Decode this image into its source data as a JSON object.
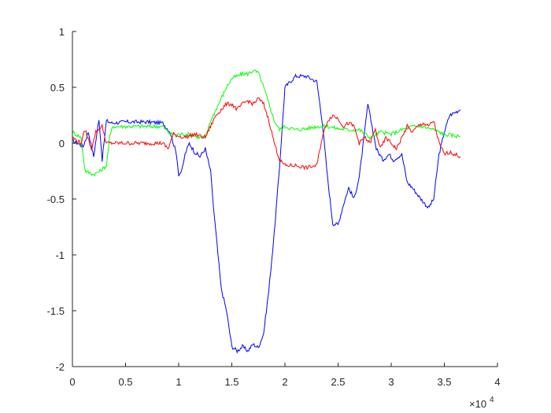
{
  "chart_data": {
    "type": "line",
    "title": "",
    "xlabel": "",
    "ylabel": "",
    "xlim": [
      0,
      40000
    ],
    "ylim": [
      -2,
      1
    ],
    "x_ticks": [
      0,
      5000,
      10000,
      15000,
      20000,
      25000,
      30000,
      35000,
      40000
    ],
    "x_tick_labels": [
      "0",
      "0.5",
      "1",
      "1.5",
      "2",
      "2.5",
      "3",
      "3.5",
      "4"
    ],
    "x_exponent_label": "×10",
    "x_exponent_power": "4",
    "y_ticks": [
      1,
      0.5,
      0,
      -0.5,
      -1,
      -1.5,
      -2
    ],
    "y_tick_labels": [
      "1",
      "0.5",
      "0",
      "-0.5",
      "-1",
      "-1.5",
      "-2"
    ],
    "grid": false,
    "legend": "none",
    "series": [
      {
        "color": "#0000ff",
        "points": [
          [
            0,
            0.02
          ],
          [
            500,
            0.0
          ],
          [
            1000,
            -0.03
          ],
          [
            1500,
            0.1
          ],
          [
            2000,
            -0.12
          ],
          [
            2500,
            0.22
          ],
          [
            2800,
            -0.15
          ],
          [
            3200,
            0.2
          ],
          [
            3700,
            0.18
          ],
          [
            5000,
            0.19
          ],
          [
            7000,
            0.19
          ],
          [
            8500,
            0.18
          ],
          [
            9200,
            0.1
          ],
          [
            9800,
            -0.1
          ],
          [
            10000,
            -0.28
          ],
          [
            10300,
            -0.25
          ],
          [
            10600,
            -0.1
          ],
          [
            11000,
            0.0
          ],
          [
            11500,
            -0.08
          ],
          [
            12000,
            -0.12
          ],
          [
            12500,
            -0.05
          ],
          [
            13000,
            -0.25
          ],
          [
            13300,
            -0.6
          ],
          [
            13700,
            -1.0
          ],
          [
            14000,
            -1.3
          ],
          [
            14500,
            -1.5
          ],
          [
            15000,
            -1.82
          ],
          [
            15500,
            -1.86
          ],
          [
            16000,
            -1.82
          ],
          [
            16500,
            -1.86
          ],
          [
            17000,
            -1.8
          ],
          [
            17500,
            -1.83
          ],
          [
            18000,
            -1.7
          ],
          [
            18500,
            -1.3
          ],
          [
            19000,
            -0.8
          ],
          [
            19500,
            -0.2
          ],
          [
            20000,
            0.5
          ],
          [
            20500,
            0.55
          ],
          [
            21000,
            0.6
          ],
          [
            22000,
            0.6
          ],
          [
            23000,
            0.55
          ],
          [
            23500,
            0.2
          ],
          [
            24000,
            -0.3
          ],
          [
            24500,
            -0.72
          ],
          [
            25000,
            -0.73
          ],
          [
            25500,
            -0.55
          ],
          [
            26000,
            -0.4
          ],
          [
            26500,
            -0.5
          ],
          [
            27000,
            -0.3
          ],
          [
            27500,
            0.1
          ],
          [
            27800,
            0.35
          ],
          [
            28200,
            0.15
          ],
          [
            28600,
            -0.05
          ],
          [
            29200,
            -0.15
          ],
          [
            29800,
            -0.1
          ],
          [
            30200,
            -0.15
          ],
          [
            31000,
            -0.1
          ],
          [
            31500,
            -0.35
          ],
          [
            32000,
            -0.4
          ],
          [
            32800,
            -0.5
          ],
          [
            33500,
            -0.58
          ],
          [
            34000,
            -0.5
          ],
          [
            34500,
            -0.1
          ],
          [
            35000,
            0.1
          ],
          [
            35500,
            0.25
          ],
          [
            36500,
            0.3
          ]
        ]
      },
      {
        "color": "#00ff00",
        "points": [
          [
            0,
            0.1
          ],
          [
            800,
            0.05
          ],
          [
            1200,
            -0.25
          ],
          [
            2000,
            -0.28
          ],
          [
            2600,
            -0.25
          ],
          [
            3200,
            -0.2
          ],
          [
            3500,
            0.05
          ],
          [
            3800,
            0.15
          ],
          [
            5000,
            0.15
          ],
          [
            7000,
            0.15
          ],
          [
            8500,
            0.15
          ],
          [
            9200,
            0.08
          ],
          [
            10000,
            0.08
          ],
          [
            11000,
            0.08
          ],
          [
            12000,
            0.05
          ],
          [
            12500,
            0.05
          ],
          [
            13000,
            0.2
          ],
          [
            13500,
            0.3
          ],
          [
            14000,
            0.4
          ],
          [
            14500,
            0.5
          ],
          [
            15000,
            0.58
          ],
          [
            15500,
            0.6
          ],
          [
            16000,
            0.62
          ],
          [
            16500,
            0.62
          ],
          [
            17000,
            0.65
          ],
          [
            17500,
            0.63
          ],
          [
            18000,
            0.5
          ],
          [
            18500,
            0.35
          ],
          [
            19000,
            0.2
          ],
          [
            19500,
            0.12
          ],
          [
            20000,
            0.15
          ],
          [
            21000,
            0.12
          ],
          [
            22000,
            0.13
          ],
          [
            23000,
            0.15
          ],
          [
            23500,
            0.15
          ],
          [
            24000,
            0.15
          ],
          [
            25000,
            0.13
          ],
          [
            26000,
            0.12
          ],
          [
            27000,
            0.12
          ],
          [
            28000,
            0.05
          ],
          [
            29000,
            0.1
          ],
          [
            30000,
            0.08
          ],
          [
            31000,
            0.12
          ],
          [
            32000,
            0.15
          ],
          [
            33000,
            0.15
          ],
          [
            34000,
            0.12
          ],
          [
            35000,
            0.08
          ],
          [
            36500,
            0.06
          ]
        ]
      },
      {
        "color": "#ff0000",
        "points": [
          [
            0,
            0.05
          ],
          [
            800,
            0.0
          ],
          [
            1200,
            0.12
          ],
          [
            1800,
            -0.05
          ],
          [
            2200,
            0.1
          ],
          [
            2800,
            0.15
          ],
          [
            3200,
            0.0
          ],
          [
            3700,
            0.0
          ],
          [
            5000,
            0.0
          ],
          [
            7000,
            0.0
          ],
          [
            8500,
            0.0
          ],
          [
            9000,
            -0.05
          ],
          [
            9500,
            0.08
          ],
          [
            10500,
            0.05
          ],
          [
            11500,
            0.08
          ],
          [
            12500,
            0.05
          ],
          [
            13000,
            0.15
          ],
          [
            13500,
            0.25
          ],
          [
            14000,
            0.3
          ],
          [
            14500,
            0.35
          ],
          [
            15000,
            0.35
          ],
          [
            15500,
            0.3
          ],
          [
            16000,
            0.35
          ],
          [
            16500,
            0.38
          ],
          [
            17000,
            0.35
          ],
          [
            17500,
            0.4
          ],
          [
            18000,
            0.35
          ],
          [
            18500,
            0.2
          ],
          [
            19000,
            0.0
          ],
          [
            19500,
            -0.15
          ],
          [
            20000,
            -0.2
          ],
          [
            21000,
            -0.2
          ],
          [
            22000,
            -0.22
          ],
          [
            23000,
            -0.2
          ],
          [
            23500,
            0.05
          ],
          [
            24000,
            0.2
          ],
          [
            24500,
            0.25
          ],
          [
            25000,
            0.22
          ],
          [
            25500,
            0.15
          ],
          [
            26000,
            0.18
          ],
          [
            26500,
            0.15
          ],
          [
            27000,
            0.0
          ],
          [
            27500,
            0.05
          ],
          [
            28000,
            0.0
          ],
          [
            28500,
            0.12
          ],
          [
            29000,
            -0.05
          ],
          [
            29500,
            0.05
          ],
          [
            30000,
            0.0
          ],
          [
            30500,
            -0.05
          ],
          [
            31000,
            0.05
          ],
          [
            31500,
            0.15
          ],
          [
            32000,
            0.1
          ],
          [
            32500,
            0.15
          ],
          [
            33000,
            0.18
          ],
          [
            33500,
            0.15
          ],
          [
            34000,
            0.2
          ],
          [
            34500,
            0.0
          ],
          [
            35000,
            -0.1
          ],
          [
            35500,
            -0.08
          ],
          [
            36500,
            -0.12
          ]
        ]
      }
    ]
  }
}
